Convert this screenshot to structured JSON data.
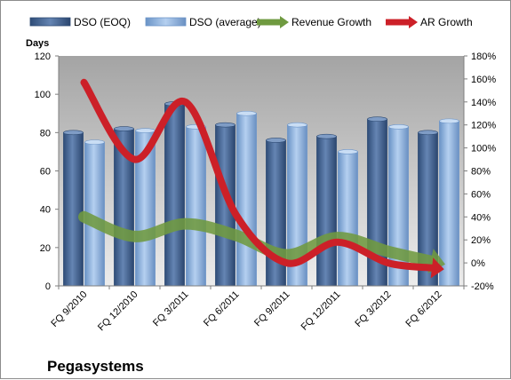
{
  "chart_data": {
    "type": "bar",
    "title": "Pegasystems",
    "ylabel": "Days",
    "ylim": [
      0,
      120
    ],
    "y2lim": [
      -20,
      180
    ],
    "yticks": [
      0,
      20,
      40,
      60,
      80,
      100,
      120
    ],
    "y2ticks": [
      "-20%",
      "0%",
      "20%",
      "40%",
      "60%",
      "80%",
      "100%",
      "120%",
      "140%",
      "160%",
      "180%"
    ],
    "y2tick_values": [
      -20,
      0,
      20,
      40,
      60,
      80,
      100,
      120,
      140,
      160,
      180
    ],
    "categories": [
      "FQ 9/2010",
      "FQ 12/2010",
      "FQ 3/2011",
      "FQ 6/2011",
      "FQ 9/2011",
      "FQ 12/2011",
      "FQ 3/2012",
      "FQ 6/2012"
    ],
    "series": [
      {
        "name": "DSO (EOQ)",
        "type": "bar",
        "axis": "left",
        "values": [
          80,
          82,
          95,
          84,
          76,
          78,
          87,
          80
        ]
      },
      {
        "name": "DSO (average)",
        "type": "bar",
        "axis": "left",
        "values": [
          75,
          81,
          83,
          90,
          84,
          70,
          83,
          86
        ]
      },
      {
        "name": "Revenue Growth",
        "type": "line",
        "axis": "right",
        "values": [
          40,
          23,
          34,
          24,
          7,
          22,
          10,
          0
        ]
      },
      {
        "name": "AR Growth",
        "type": "line",
        "axis": "right",
        "values": [
          157,
          90,
          140,
          42,
          0,
          18,
          0,
          -5
        ]
      }
    ],
    "grid": false,
    "legend_position": "top",
    "colors": {
      "bar_eoq": "#4a6a96",
      "bar_eoq_dark": "#2d4a73",
      "bar_avg": "#8fb4e0",
      "bar_avg_dark": "#6d95c8",
      "revenue": "#6f9a40",
      "ar": "#cc2028",
      "plot_top": "#a4a4a4",
      "plot_bottom": "#e9e9e9"
    }
  }
}
